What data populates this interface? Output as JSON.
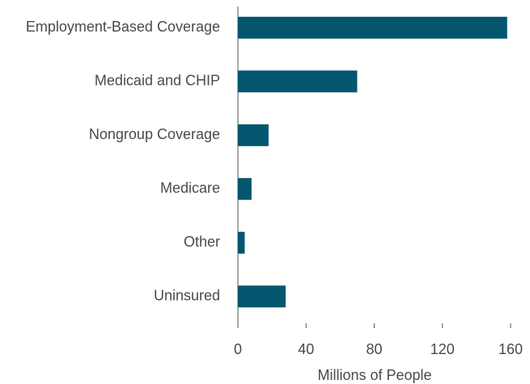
{
  "chart_data": {
    "type": "hbar",
    "categories": [
      "Employment-Based Coverage",
      "Medicaid and CHIP",
      "Nongroup Coverage",
      "Medicare",
      "Other",
      "Uninsured"
    ],
    "values": [
      158,
      70,
      18,
      8,
      4,
      28
    ],
    "color": "#04566e",
    "xlabel": "Millions of People",
    "xlim": [
      0,
      160
    ],
    "xticks": [
      0,
      40,
      80,
      120,
      160
    ],
    "grid": false
  }
}
